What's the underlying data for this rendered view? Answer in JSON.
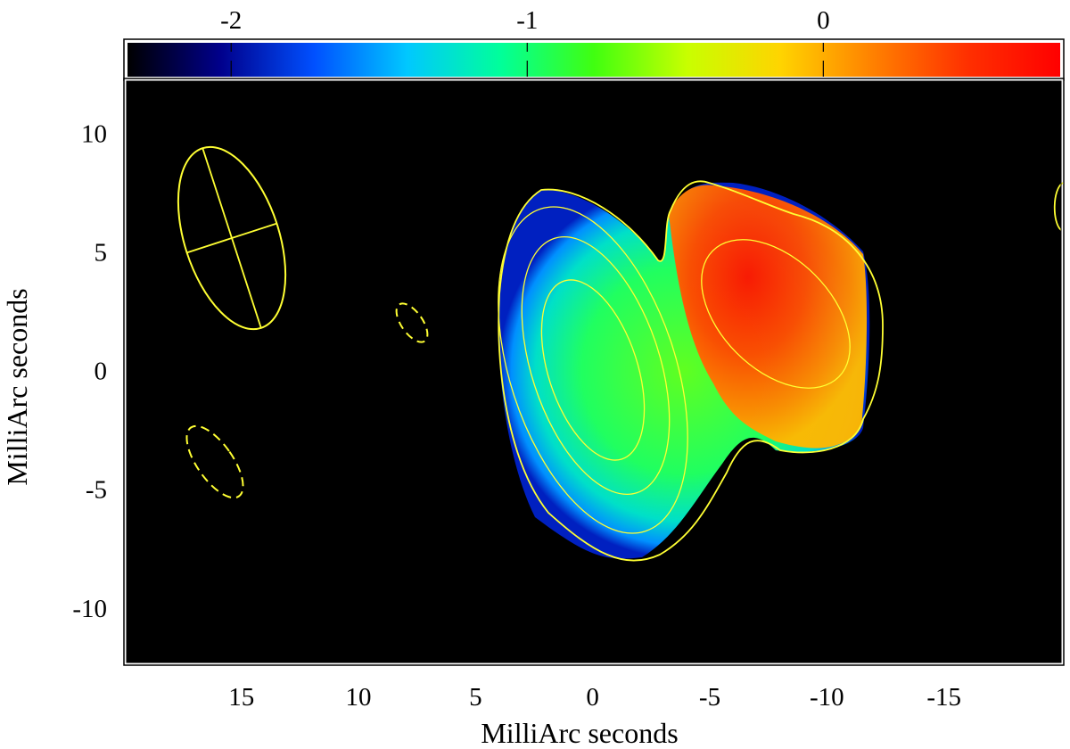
{
  "chart_data": {
    "type": "heatmap",
    "title": "",
    "xlabel": "MilliArc seconds",
    "ylabel": "MilliArc seconds",
    "xlim": [
      19.9,
      -20
    ],
    "ylim": [
      -12.3,
      12.2
    ],
    "x_ticks": [
      15,
      10,
      5,
      0,
      -5,
      -10,
      -15
    ],
    "y_ticks": [
      -10,
      -5,
      0,
      5,
      10
    ],
    "colorbar": {
      "location": "top",
      "range": [
        -2.35,
        0.8
      ],
      "ticks": [
        -2,
        -1,
        0
      ],
      "colormap": [
        "#000000",
        "#00008c",
        "#0050ff",
        "#00c8ff",
        "#00ff9a",
        "#40ff10",
        "#c8ff00",
        "#ffd400",
        "#ff8000",
        "#ff3000",
        "#ff0000"
      ]
    },
    "grid": false,
    "background": "#000000",
    "contour_color": "#ffff33",
    "beam": {
      "x": 15,
      "y": 5.6,
      "major_mas": 7.8,
      "minor_mas": 3.9,
      "pa_deg": 20
    },
    "negative_contours": [
      {
        "x": 7.5,
        "y": 2.1,
        "major_mas": 1.8,
        "minor_mas": 0.9,
        "pa_deg": 20
      },
      {
        "x": 15.5,
        "y": -3.8,
        "major_mas": 3.4,
        "minor_mas": 1.5,
        "pa_deg": 20
      }
    ],
    "components": [
      {
        "name": "",
        "x": 0.5,
        "y": -0.5,
        "value": -0.95
      },
      {
        "name": "",
        "x": -7,
        "y": 3,
        "value": 0.35
      }
    ]
  }
}
